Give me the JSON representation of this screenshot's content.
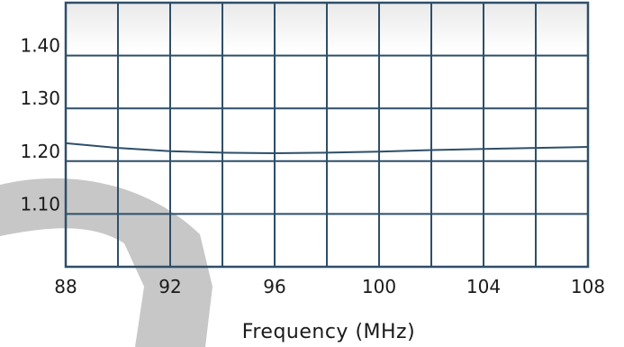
{
  "chart_data": {
    "type": "line",
    "xlabel": "Frequency (MHz)",
    "ylabel": "",
    "xlim": [
      88,
      108
    ],
    "ylim": [
      1.0,
      1.5
    ],
    "x_ticks": [
      "88",
      "92",
      "96",
      "100",
      "104",
      "108"
    ],
    "y_ticks": [
      "1.40",
      "1.30",
      "1.20",
      "1.10"
    ],
    "x_tick_values": [
      88,
      92,
      96,
      100,
      104,
      108
    ],
    "y_tick_values": [
      1.4,
      1.3,
      1.2,
      1.1
    ],
    "x_grid_step": 2,
    "y_grid_step": 0.1,
    "grid": true,
    "series": [
      {
        "x": [
          88,
          90,
          92,
          94,
          96,
          98,
          100,
          102,
          104,
          106,
          108
        ],
        "y": [
          1.234,
          1.225,
          1.219,
          1.216,
          1.215,
          1.216,
          1.218,
          1.221,
          1.223,
          1.225,
          1.227
        ]
      }
    ]
  },
  "colors": {
    "grid": "#2e4f69",
    "line": "#2e4f69",
    "watermark": "#b9b9b9"
  }
}
